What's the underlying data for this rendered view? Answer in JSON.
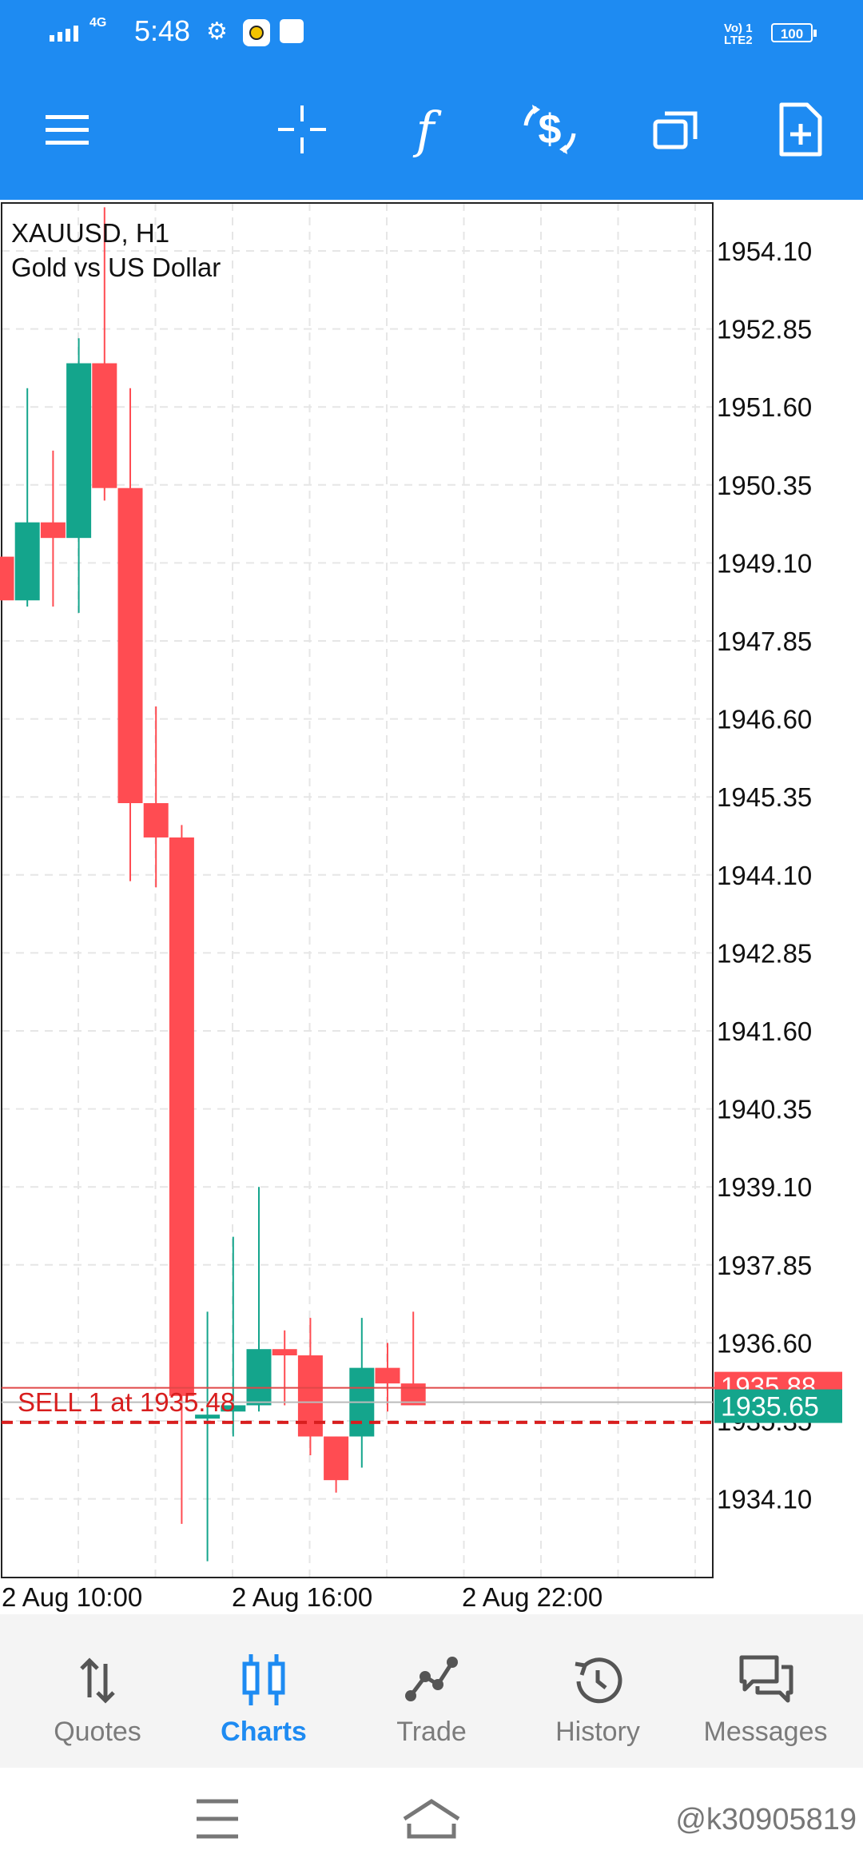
{
  "status_bar": {
    "time": "5:48",
    "network": "4G",
    "volte": "Vo) 1",
    "lte": "LTE2",
    "battery": "100"
  },
  "toolbar": {
    "icons": [
      "menu-icon",
      "crosshair-icon",
      "function-icon",
      "trade-dollar-icon",
      "windows-icon",
      "new-document-icon"
    ],
    "function_glyph": "f"
  },
  "chart": {
    "symbol": "XAUUSD, H1",
    "description": "Gold vs US Dollar",
    "price_labels": [
      "1954.10",
      "1952.85",
      "1951.60",
      "1950.35",
      "1949.10",
      "1947.85",
      "1946.60",
      "1945.35",
      "1944.10",
      "1942.85",
      "1941.60",
      "1940.35",
      "1939.10",
      "1937.85",
      "1936.60",
      "1935.35",
      "1934.10"
    ],
    "time_labels": [
      "2 Aug 10:00",
      "2 Aug 16:00",
      "2 Aug 22:00"
    ],
    "order_label": "SELL 1 at 1935.48",
    "bid_price": "1935.65",
    "ask_price": "1935.88",
    "colors": {
      "bull": "#14a58c",
      "bear": "#ff4c52",
      "order": "#d81e1e",
      "grid": "#e6e6e6"
    }
  },
  "chart_data": {
    "type": "candlestick",
    "symbol": "XAUUSD",
    "timeframe": "H1",
    "ylim": [
      1933.0,
      1954.9
    ],
    "y_ticks": [
      1954.1,
      1952.85,
      1951.6,
      1950.35,
      1949.1,
      1947.85,
      1946.6,
      1945.35,
      1944.1,
      1942.85,
      1941.6,
      1940.35,
      1939.1,
      1937.85,
      1936.6,
      1935.35,
      1934.1
    ],
    "x_tick_labels": [
      "2 Aug 10:00",
      "2 Aug 16:00",
      "2 Aug 22:00"
    ],
    "candles": [
      {
        "open": 1949.2,
        "high": 1949.2,
        "low": 1948.5,
        "close": 1948.5
      },
      {
        "open": 1948.5,
        "high": 1951.9,
        "low": 1948.4,
        "close": 1949.75
      },
      {
        "open": 1949.75,
        "high": 1950.9,
        "low": 1948.4,
        "close": 1949.5
      },
      {
        "open": 1949.5,
        "high": 1952.7,
        "low": 1948.3,
        "close": 1952.3
      },
      {
        "open": 1952.3,
        "high": 1954.8,
        "low": 1950.1,
        "close": 1950.3
      },
      {
        "open": 1950.3,
        "high": 1951.9,
        "low": 1944.0,
        "close": 1945.25
      },
      {
        "open": 1945.25,
        "high": 1946.8,
        "low": 1943.9,
        "close": 1944.7
      },
      {
        "open": 1944.7,
        "high": 1944.9,
        "low": 1933.7,
        "close": 1935.75
      },
      {
        "open": 1935.4,
        "high": 1937.1,
        "low": 1933.1,
        "close": 1935.45
      },
      {
        "open": 1935.5,
        "high": 1938.3,
        "low": 1935.1,
        "close": 1935.6
      },
      {
        "open": 1935.6,
        "high": 1939.1,
        "low": 1935.5,
        "close": 1936.5
      },
      {
        "open": 1936.5,
        "high": 1936.8,
        "low": 1935.6,
        "close": 1936.4
      },
      {
        "open": 1936.4,
        "high": 1937.0,
        "low": 1934.8,
        "close": 1935.1
      },
      {
        "open": 1935.1,
        "high": 1935.1,
        "low": 1934.2,
        "close": 1934.4
      },
      {
        "open": 1935.1,
        "high": 1937.0,
        "low": 1934.6,
        "close": 1936.2
      },
      {
        "open": 1936.2,
        "high": 1936.6,
        "low": 1935.5,
        "close": 1935.95
      },
      {
        "open": 1935.95,
        "high": 1937.1,
        "low": 1935.6,
        "close": 1935.6
      }
    ],
    "bid": 1935.65,
    "ask": 1935.88,
    "order_price": 1935.48
  },
  "bottom_nav": [
    {
      "label": "Quotes",
      "icon": "quotes-icon",
      "active": false
    },
    {
      "label": "Charts",
      "icon": "charts-icon",
      "active": true
    },
    {
      "label": "Trade",
      "icon": "trade-icon",
      "active": false
    },
    {
      "label": "History",
      "icon": "history-icon",
      "active": false
    },
    {
      "label": "Messages",
      "icon": "messages-icon",
      "active": false
    }
  ],
  "system_nav": {
    "watermark": "@k30905819"
  }
}
